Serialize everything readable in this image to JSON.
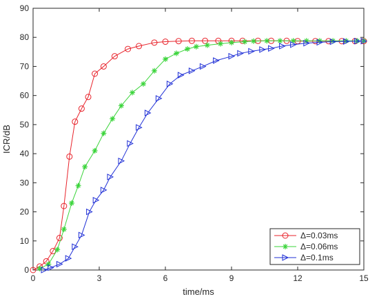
{
  "chart_data": {
    "type": "line",
    "title": "",
    "xlabel": "time/ms",
    "ylabel": "ICR/dB",
    "xlim": [
      0,
      15
    ],
    "ylim": [
      0,
      90
    ],
    "xticks": [
      0,
      3,
      6,
      9,
      12,
      15
    ],
    "yticks": [
      0,
      10,
      20,
      30,
      40,
      50,
      60,
      70,
      80,
      90
    ],
    "grid": false,
    "legend": "bottom-right",
    "series": [
      {
        "name": "Δ=0.03ms",
        "color": "#e8222a",
        "marker": "circle",
        "x": [
          0,
          0.3,
          0.6,
          0.9,
          1.2,
          1.4,
          1.65,
          1.9,
          2.2,
          2.5,
          2.8,
          3.2,
          3.7,
          4.3,
          4.8,
          5.5,
          6.0,
          6.6,
          7.2,
          7.8,
          8.4,
          9.0,
          9.5,
          10.2,
          10.8,
          11.5,
          12.0,
          12.8,
          13.4,
          14.0,
          14.6,
          15.0
        ],
        "y": [
          0,
          1.2,
          3,
          6.5,
          11,
          22,
          39,
          51,
          55.5,
          59.5,
          67.5,
          70,
          73.5,
          76,
          77,
          78.2,
          78.5,
          78.7,
          78.8,
          78.8,
          78.8,
          78.8,
          78.8,
          78.8,
          78.8,
          78.8,
          78.7,
          78.7,
          78.7,
          78.7,
          78.7,
          78.7
        ]
      },
      {
        "name": "Δ=0.06ms",
        "color": "#3ad43a",
        "marker": "asterisk",
        "x": [
          0.3,
          0.7,
          1.1,
          1.4,
          1.75,
          2.05,
          2.35,
          2.8,
          3.2,
          3.6,
          4.0,
          4.5,
          5.0,
          5.5,
          6.0,
          6.5,
          7.0,
          7.4,
          7.9,
          8.5,
          9.0,
          9.6,
          10.0,
          10.6,
          11.2,
          11.8,
          12.4,
          13.0,
          13.6,
          14.2,
          14.7,
          15.0
        ],
        "y": [
          0.5,
          2,
          7,
          14,
          23,
          29,
          35.5,
          41,
          47,
          52,
          56.5,
          61,
          64,
          68.5,
          72.5,
          74.5,
          76,
          76.8,
          77.3,
          77.8,
          78.2,
          78.5,
          78.7,
          78.8,
          78.8,
          78.8,
          78.8,
          78.8,
          78.8,
          78.8,
          78.8,
          78.8
        ]
      },
      {
        "name": "Δ=0.1ms",
        "color": "#1f2fd6",
        "marker": "triangle-right",
        "x": [
          0.5,
          0.8,
          1.2,
          1.6,
          1.9,
          2.2,
          2.55,
          2.85,
          3.2,
          3.5,
          4.0,
          4.4,
          4.8,
          5.2,
          5.7,
          6.2,
          6.7,
          7.2,
          7.7,
          8.3,
          9.0,
          9.4,
          9.9,
          10.4,
          10.8,
          11.3,
          11.8,
          12.4,
          13.0,
          13.6,
          14.2,
          14.7,
          15.0
        ],
        "y": [
          0,
          0.8,
          2,
          4,
          8,
          12,
          20,
          24,
          27.5,
          32,
          37.5,
          43.5,
          49,
          54,
          59,
          64,
          67,
          68.5,
          70,
          72,
          73.5,
          74.5,
          75.2,
          75.8,
          76.2,
          77,
          77.5,
          78,
          78.3,
          78.5,
          78.6,
          78.7,
          78.7
        ]
      }
    ]
  }
}
